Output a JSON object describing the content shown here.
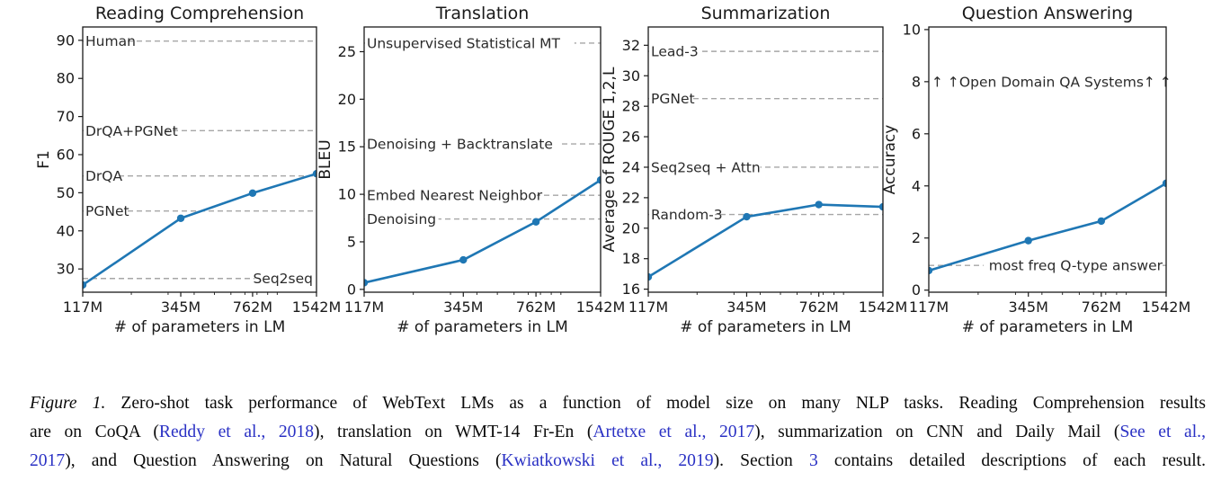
{
  "figure": {
    "label": "Figure 1.",
    "shared_xlabel": "# of parameters in LM",
    "x_tick_labels": [
      "117M",
      "345M",
      "762M",
      "1542M"
    ]
  },
  "colors": {
    "line": "#1f77b4",
    "marker": "#1f77b4",
    "baseline_dash": "#a6a6a6",
    "axis": "#1a1a1a",
    "annotation_text": "#2b2b2b",
    "link": "#2a31c4",
    "caption_text": "#0a0a0a",
    "background": "#ffffff"
  },
  "chart_data": [
    {
      "id": "reading-comprehension",
      "type": "line",
      "title": "Reading Comprehension",
      "ylabel": "F1",
      "xlabel": "# of parameters in LM",
      "x_scale": "log",
      "x_tick_labels": [
        "117M",
        "345M",
        "762M",
        "1542M"
      ],
      "x_values_millions": [
        117,
        345,
        762,
        1542
      ],
      "series": [
        {
          "name": "WebText LM",
          "values": [
            25.8,
            43.3,
            49.9,
            55.0
          ]
        }
      ],
      "ylim": [
        23.9,
        93.5
      ],
      "yticks": [
        30,
        40,
        50,
        60,
        70,
        80,
        90
      ],
      "grid": false,
      "baselines": [
        {
          "label": "Human",
          "value": 89.8,
          "side": "left"
        },
        {
          "label": "DrQA+PGNet",
          "value": 66.3,
          "side": "left"
        },
        {
          "label": "DrQA",
          "value": 54.4,
          "side": "left"
        },
        {
          "label": "PGNet",
          "value": 45.2,
          "side": "left"
        },
        {
          "label": "Seq2seq",
          "value": 27.5,
          "side": "right"
        }
      ],
      "annotations": []
    },
    {
      "id": "translation",
      "type": "line",
      "title": "Translation",
      "ylabel": "BLEU",
      "xlabel": "# of parameters in LM",
      "x_scale": "log",
      "x_tick_labels": [
        "117M",
        "345M",
        "762M",
        "1542M"
      ],
      "x_values_millions": [
        117,
        345,
        762,
        1542
      ],
      "series": [
        {
          "name": "WebText LM",
          "values": [
            0.7,
            3.1,
            7.1,
            11.5
          ]
        }
      ],
      "ylim": [
        -0.3,
        27.6
      ],
      "yticks": [
        0,
        5,
        10,
        15,
        20,
        25
      ],
      "grid": false,
      "baselines": [
        {
          "label": "Unsupervised Statistical MT",
          "value": 25.9,
          "side": "left"
        },
        {
          "label": "Denoising + Backtranslate",
          "value": 15.3,
          "side": "left"
        },
        {
          "label": "Embed Nearest Neighbor",
          "value": 9.9,
          "side": "left"
        },
        {
          "label": "Denoising",
          "value": 7.4,
          "side": "left"
        }
      ],
      "annotations": []
    },
    {
      "id": "summarization",
      "type": "line",
      "title": "Summarization",
      "ylabel": "Average of ROUGE 1,2,L",
      "xlabel": "# of parameters in LM",
      "x_scale": "log",
      "x_tick_labels": [
        "117M",
        "345M",
        "762M",
        "1542M"
      ],
      "x_values_millions": [
        117,
        345,
        762,
        1542
      ],
      "series": [
        {
          "name": "WebText LM",
          "values": [
            16.8,
            20.75,
            21.55,
            21.4
          ]
        }
      ],
      "ylim": [
        15.8,
        33.2
      ],
      "yticks": [
        16,
        18,
        20,
        22,
        24,
        26,
        28,
        30,
        32
      ],
      "grid": false,
      "baselines": [
        {
          "label": "Lead-3",
          "value": 31.6,
          "side": "left"
        },
        {
          "label": "PGNet",
          "value": 28.5,
          "side": "left"
        },
        {
          "label": "Seq2seq + Attn",
          "value": 24.0,
          "side": "left"
        },
        {
          "label": "Random-3",
          "value": 20.9,
          "side": "left"
        }
      ],
      "annotations": []
    },
    {
      "id": "question-answering",
      "type": "line",
      "title": "Question Answering",
      "ylabel": "Accuracy",
      "xlabel": "# of parameters in LM",
      "x_scale": "log",
      "x_tick_labels": [
        "117M",
        "345M",
        "762M",
        "1542M"
      ],
      "x_values_millions": [
        117,
        345,
        762,
        1542
      ],
      "series": [
        {
          "name": "WebText LM",
          "values": [
            0.75,
            1.9,
            2.65,
            4.1
          ]
        }
      ],
      "ylim": [
        -0.08,
        10.1
      ],
      "yticks": [
        0,
        2,
        4,
        6,
        8,
        10
      ],
      "grid": false,
      "baselines": [
        {
          "label": "most freq Q-type answer",
          "value": 0.95,
          "side": "right"
        }
      ],
      "annotations": [
        {
          "label": "↑ ↑Open Domain QA Systems↑ ↑",
          "value": 8.0,
          "side": "left"
        }
      ]
    }
  ],
  "caption": {
    "lines": [
      [
        {
          "t": "Figure 1.",
          "s": "italic"
        },
        {
          "t": " Zero-shot task performance of WebText LMs as a function of model size on many NLP tasks. Reading Comprehension results",
          "s": "normal"
        }
      ],
      [
        {
          "t": "are on CoQA (",
          "s": "normal"
        },
        {
          "t": "Reddy et al., 2018",
          "s": "link"
        },
        {
          "t": "), translation on WMT-14 Fr-En (",
          "s": "normal"
        },
        {
          "t": "Artetxe et al., 2017",
          "s": "link"
        },
        {
          "t": "), summarization on CNN and Daily Mail (",
          "s": "normal"
        },
        {
          "t": "See et al.,",
          "s": "link"
        }
      ],
      [
        {
          "t": "2017",
          "s": "link"
        },
        {
          "t": "), and Question Answering on Natural Questions (",
          "s": "normal"
        },
        {
          "t": "Kwiatkowski et al., 2019",
          "s": "link"
        },
        {
          "t": "). Section ",
          "s": "normal"
        },
        {
          "t": "3",
          "s": "link"
        },
        {
          "t": " contains detailed descriptions of each result.",
          "s": "normal"
        }
      ]
    ]
  }
}
